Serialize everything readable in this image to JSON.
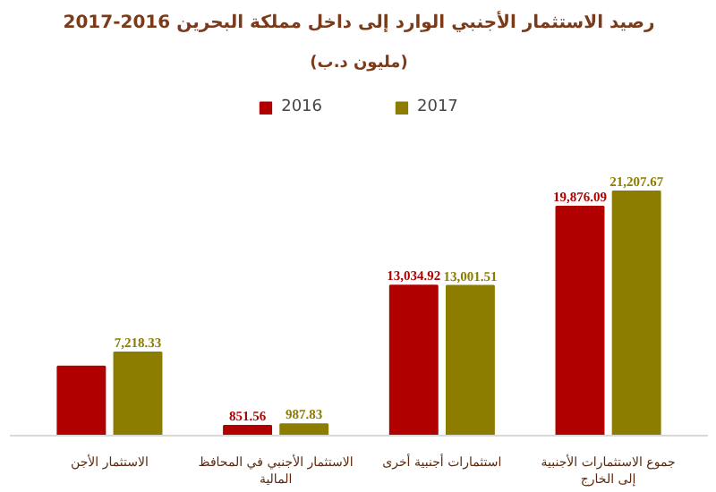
{
  "chart_data": {
    "type": "bar",
    "title": "رصيد الاستثمار الأجنبي الوارد إلى داخل مملكة البحرين 2016-2017",
    "subtitle": "(مليون د.ب)",
    "categories": [
      "الاستثمار الأجن",
      "الاستثمار الأجنبي في المحافظ\nالمالية",
      "استثمارات أجنبية أخرى",
      "جموع الاستثمارات الأجنبية\nإلى الخارج"
    ],
    "series": [
      {
        "name": "2016",
        "color": "#b00000",
        "values": [
          6000,
          851.56,
          13034.92,
          19876.09
        ],
        "value_labels": [
          null,
          "851.56",
          "13,034.92",
          "19,876.09"
        ]
      },
      {
        "name": "2017",
        "color": "#8c7d00",
        "values": [
          7218.33,
          987.83,
          13001.51,
          21207.67
        ],
        "value_labels": [
          "7,218.33",
          "987.83",
          "13,001.51",
          "21,207.67"
        ]
      }
    ],
    "relative": false,
    "legend": "top",
    "grid": false
  }
}
